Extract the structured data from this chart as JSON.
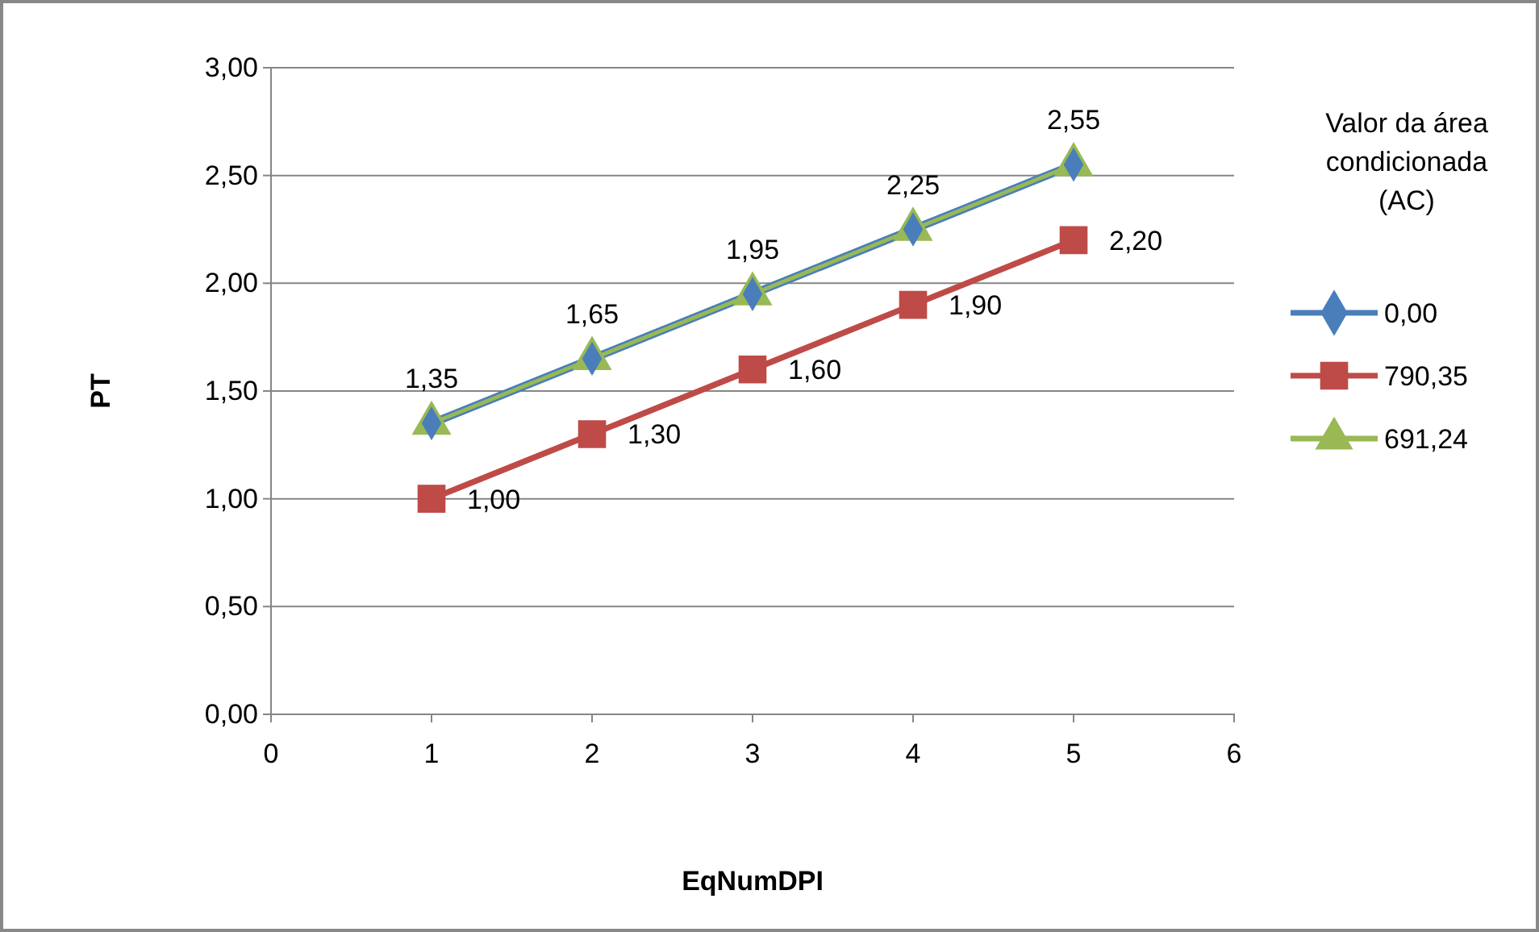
{
  "chart_data": {
    "type": "line",
    "xlabel": "EqNumDPI",
    "ylabel": "PT",
    "legend_title": "Valor da área condicionada (AC)",
    "legend": "right",
    "grid": "y",
    "line_style": "solid",
    "x": [
      1,
      2,
      3,
      4,
      5
    ],
    "xlim": [
      0,
      6
    ],
    "xticks": [
      0,
      1,
      2,
      3,
      4,
      5,
      6
    ],
    "ylim": [
      0,
      3
    ],
    "yticks": [
      {
        "value": 0,
        "label": "0,00"
      },
      {
        "value": 0.5,
        "label": "0,50"
      },
      {
        "value": 1,
        "label": "1,00"
      },
      {
        "value": 1.5,
        "label": "1,50"
      },
      {
        "value": 2,
        "label": "2,00"
      },
      {
        "value": 2.5,
        "label": "2,50"
      },
      {
        "value": 3,
        "label": "3,00"
      }
    ],
    "series": [
      {
        "name": "0,00",
        "color": "#4a7ebb",
        "marker": "diamond",
        "values": [
          1.35,
          1.65,
          1.95,
          2.25,
          2.55
        ],
        "value_labels": [
          "1,35",
          "1,65",
          "1,95",
          "2,25",
          "2,55"
        ]
      },
      {
        "name": "790,35",
        "color": "#be4b48",
        "marker": "square",
        "values": [
          1.0,
          1.3,
          1.6,
          1.9,
          2.2
        ],
        "value_labels": [
          "1,00",
          "1,30",
          "1,60",
          "1,90",
          "2,20"
        ]
      },
      {
        "name": "691,24",
        "color": "#98b954",
        "marker": "triangle",
        "values": [
          1.35,
          1.65,
          1.95,
          2.25,
          2.55
        ]
      }
    ]
  }
}
